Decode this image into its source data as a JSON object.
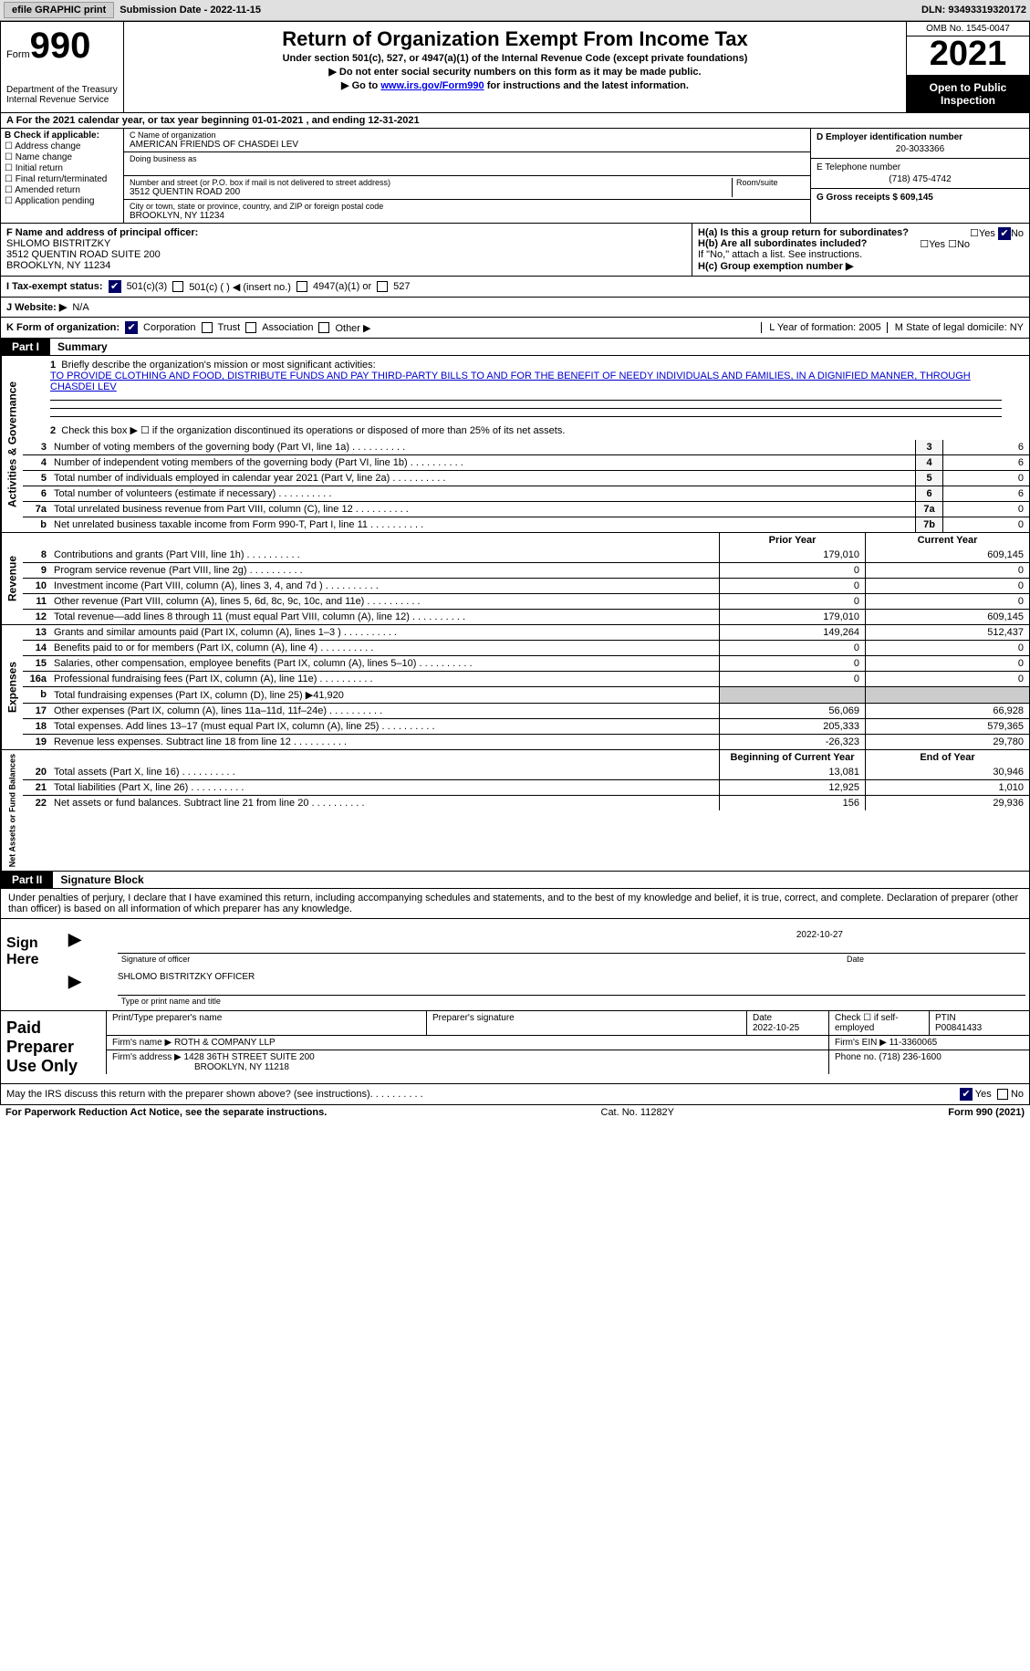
{
  "toolbar": {
    "efile_label": "efile GRAPHIC print",
    "submission_label": "Submission Date - 2022-11-15",
    "dln_label": "DLN: 93493319320172"
  },
  "header": {
    "form_label": "Form",
    "form_number": "990",
    "dept": "Department of the Treasury",
    "irs": "Internal Revenue Service",
    "title": "Return of Organization Exempt From Income Tax",
    "subtitle": "Under section 501(c), 527, or 4947(a)(1) of the Internal Revenue Code (except private foundations)",
    "note1": "▶ Do not enter social security numbers on this form as it may be made public.",
    "note2_pre": "▶ Go to ",
    "note2_link": "www.irs.gov/Form990",
    "note2_post": " for instructions and the latest information.",
    "omb": "OMB No. 1545-0047",
    "year": "2021",
    "inspection": "Open to Public Inspection"
  },
  "row_a": "A For the 2021 calendar year, or tax year beginning 01-01-2021    , and ending 12-31-2021",
  "section_b": {
    "label": "B Check if applicable:",
    "opts": [
      "Address change",
      "Name change",
      "Initial return",
      "Final return/terminated",
      "Amended return",
      "Application pending"
    ]
  },
  "section_c": {
    "name_label": "C Name of organization",
    "name": "AMERICAN FRIENDS OF CHASDEI LEV",
    "dba_label": "Doing business as",
    "street_label": "Number and street (or P.O. box if mail is not delivered to street address)",
    "room_label": "Room/suite",
    "street": "3512 QUENTIN ROAD 200",
    "city_label": "City or town, state or province, country, and ZIP or foreign postal code",
    "city": "BROOKLYN, NY  11234"
  },
  "section_d": {
    "label": "D Employer identification number",
    "val": "20-3033366"
  },
  "section_e": {
    "label": "E Telephone number",
    "val": "(718) 475-4742"
  },
  "section_g": {
    "label": "G Gross receipts $ 609,145"
  },
  "section_f": {
    "label": "F Name and address of principal officer:",
    "name": "SHLOMO BISTRITZKY",
    "addr1": "3512 QUENTIN ROAD SUITE 200",
    "addr2": "BROOKLYN, NY  11234"
  },
  "section_h": {
    "ha_label": "H(a)  Is this a group return for subordinates?",
    "hb_label": "H(b)  Are all subordinates included?",
    "hb_note": "If \"No,\" attach a list. See instructions.",
    "hc_label": "H(c)  Group exemption number ▶",
    "yes": "Yes",
    "no": "No"
  },
  "section_i": {
    "label": "I   Tax-exempt status:",
    "opt1": "501(c)(3)",
    "opt2": "501(c) (  ) ◀ (insert no.)",
    "opt3": "4947(a)(1) or",
    "opt4": "527"
  },
  "section_j": {
    "label": "J   Website: ▶",
    "val": "N/A"
  },
  "section_k": {
    "label": "K Form of organization:",
    "opts": [
      "Corporation",
      "Trust",
      "Association",
      "Other ▶"
    ],
    "year_label": "L Year of formation: 2005",
    "state_label": "M State of legal domicile: NY"
  },
  "part1": {
    "header": "Part I",
    "title": "Summary",
    "line1": "Briefly describe the organization's mission or most significant activities:",
    "mission": "TO PROVIDE CLOTHING AND FOOD, DISTRIBUTE FUNDS AND PAY THIRD-PARTY BILLS TO AND FOR THE BENEFIT OF NEEDY INDIVIDUALS AND FAMILIES, IN A DIGNIFIED MANNER, THROUGH CHASDEI LEV",
    "line2": "Check this box ▶ ☐  if the organization discontinued its operations or disposed of more than 25% of its net assets.",
    "gov_label": "Activities & Governance",
    "rev_label": "Revenue",
    "exp_label": "Expenses",
    "net_label": "Net Assets or Fund Balances",
    "prior_label": "Prior Year",
    "current_label": "Current Year",
    "begin_label": "Beginning of Current Year",
    "end_label": "End of Year",
    "lines_gov": [
      {
        "n": "3",
        "d": "Number of voting members of the governing body (Part VI, line 1a)",
        "box": "3",
        "v": "6"
      },
      {
        "n": "4",
        "d": "Number of independent voting members of the governing body (Part VI, line 1b)",
        "box": "4",
        "v": "6"
      },
      {
        "n": "5",
        "d": "Total number of individuals employed in calendar year 2021 (Part V, line 2a)",
        "box": "5",
        "v": "0"
      },
      {
        "n": "6",
        "d": "Total number of volunteers (estimate if necessary)",
        "box": "6",
        "v": "6"
      },
      {
        "n": "7a",
        "d": "Total unrelated business revenue from Part VIII, column (C), line 12",
        "box": "7a",
        "v": "0"
      },
      {
        "n": "b",
        "d": "Net unrelated business taxable income from Form 990-T, Part I, line 11",
        "box": "7b",
        "v": "0"
      }
    ],
    "lines_rev": [
      {
        "n": "8",
        "d": "Contributions and grants (Part VIII, line 1h)",
        "p": "179,010",
        "c": "609,145"
      },
      {
        "n": "9",
        "d": "Program service revenue (Part VIII, line 2g)",
        "p": "0",
        "c": "0"
      },
      {
        "n": "10",
        "d": "Investment income (Part VIII, column (A), lines 3, 4, and 7d )",
        "p": "0",
        "c": "0"
      },
      {
        "n": "11",
        "d": "Other revenue (Part VIII, column (A), lines 5, 6d, 8c, 9c, 10c, and 11e)",
        "p": "0",
        "c": "0"
      },
      {
        "n": "12",
        "d": "Total revenue—add lines 8 through 11 (must equal Part VIII, column (A), line 12)",
        "p": "179,010",
        "c": "609,145"
      }
    ],
    "lines_exp": [
      {
        "n": "13",
        "d": "Grants and similar amounts paid (Part IX, column (A), lines 1–3 )",
        "p": "149,264",
        "c": "512,437"
      },
      {
        "n": "14",
        "d": "Benefits paid to or for members (Part IX, column (A), line 4)",
        "p": "0",
        "c": "0"
      },
      {
        "n": "15",
        "d": "Salaries, other compensation, employee benefits (Part IX, column (A), lines 5–10)",
        "p": "0",
        "c": "0"
      },
      {
        "n": "16a",
        "d": "Professional fundraising fees (Part IX, column (A), line 11e)",
        "p": "0",
        "c": "0"
      },
      {
        "n": "b",
        "d": "Total fundraising expenses (Part IX, column (D), line 25) ▶41,920",
        "p": "",
        "c": "",
        "shaded": true
      },
      {
        "n": "17",
        "d": "Other expenses (Part IX, column (A), lines 11a–11d, 11f–24e)",
        "p": "56,069",
        "c": "66,928"
      },
      {
        "n": "18",
        "d": "Total expenses. Add lines 13–17 (must equal Part IX, column (A), line 25)",
        "p": "205,333",
        "c": "579,365"
      },
      {
        "n": "19",
        "d": "Revenue less expenses. Subtract line 18 from line 12",
        "p": "-26,323",
        "c": "29,780"
      }
    ],
    "lines_net": [
      {
        "n": "20",
        "d": "Total assets (Part X, line 16)",
        "p": "13,081",
        "c": "30,946"
      },
      {
        "n": "21",
        "d": "Total liabilities (Part X, line 26)",
        "p": "12,925",
        "c": "1,010"
      },
      {
        "n": "22",
        "d": "Net assets or fund balances. Subtract line 21 from line 20",
        "p": "156",
        "c": "29,936"
      }
    ]
  },
  "part2": {
    "header": "Part II",
    "title": "Signature Block",
    "declaration": "Under penalties of perjury, I declare that I have examined this return, including accompanying schedules and statements, and to the best of my knowledge and belief, it is true, correct, and complete. Declaration of preparer (other than officer) is based on all information of which preparer has any knowledge.",
    "sign_here": "Sign Here",
    "sig_officer": "Signature of officer",
    "sig_date": "Date",
    "sig_date_val": "2022-10-27",
    "officer_name": "SHLOMO BISTRITZKY OFFICER",
    "type_name": "Type or print name and title",
    "paid_label": "Paid Preparer Use Only",
    "prep_name_label": "Print/Type preparer's name",
    "prep_sig_label": "Preparer's signature",
    "prep_date_label": "Date",
    "prep_date_val": "2022-10-25",
    "check_self": "Check ☐ if self-employed",
    "ptin_label": "PTIN",
    "ptin_val": "P00841433",
    "firm_name_label": "Firm's name     ▶",
    "firm_name": "ROTH & COMPANY LLP",
    "firm_ein_label": "Firm's EIN ▶ 11-3360065",
    "firm_addr_label": "Firm's address ▶",
    "firm_addr1": "1428 36TH STREET SUITE 200",
    "firm_addr2": "BROOKLYN, NY  11218",
    "phone_label": "Phone no. (718) 236-1600",
    "discuss": "May the IRS discuss this return with the preparer shown above? (see instructions)",
    "yes": "Yes",
    "no": "No"
  },
  "footer": {
    "paperwork": "For Paperwork Reduction Act Notice, see the separate instructions.",
    "cat": "Cat. No. 11282Y",
    "form": "Form 990 (2021)"
  }
}
